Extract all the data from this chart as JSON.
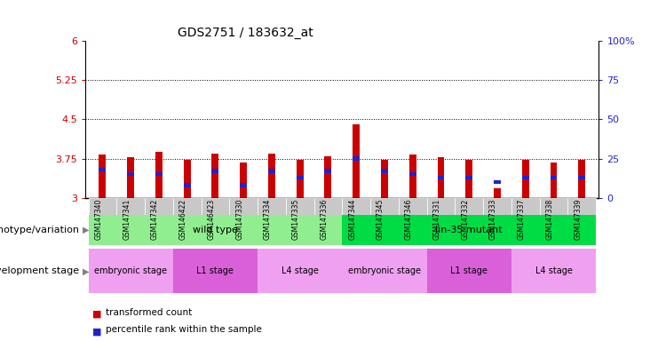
{
  "title": "GDS2751 / 183632_at",
  "samples": [
    "GSM147340",
    "GSM147341",
    "GSM147342",
    "GSM146422",
    "GSM146423",
    "GSM147330",
    "GSM147334",
    "GSM147335",
    "GSM147336",
    "GSM147344",
    "GSM147345",
    "GSM147346",
    "GSM147331",
    "GSM147332",
    "GSM147333",
    "GSM147337",
    "GSM147338",
    "GSM147339"
  ],
  "red_values": [
    3.82,
    3.78,
    3.88,
    3.72,
    3.85,
    3.68,
    3.85,
    3.72,
    3.8,
    4.4,
    3.73,
    3.83,
    3.78,
    3.72,
    3.18,
    3.73,
    3.68,
    3.73
  ],
  "blue_values": [
    18,
    15,
    15,
    8,
    17,
    8,
    17,
    13,
    17,
    25,
    17,
    15,
    13,
    13,
    10,
    13,
    13,
    13
  ],
  "ymin": 3.0,
  "ymax": 6.0,
  "yticks": [
    3.0,
    3.75,
    4.5,
    5.25,
    6.0
  ],
  "ytick_labels": [
    "3",
    "3.75",
    "4.5",
    "5.25",
    "6"
  ],
  "right_yticks": [
    0,
    25,
    50,
    75,
    100
  ],
  "right_ytick_labels": [
    "0",
    "25",
    "50",
    "75",
    "100%"
  ],
  "hlines": [
    3.75,
    4.5,
    5.25
  ],
  "genotype_groups": [
    {
      "label": "wild type",
      "start": 0,
      "end": 9,
      "color": "#90EE90"
    },
    {
      "label": "lin-35 mutant",
      "start": 9,
      "end": 18,
      "color": "#00DD44"
    }
  ],
  "stage_color_map": [
    "#F0A0F0",
    "#DA60DA",
    "#F0A0F0",
    "#F0A0F0",
    "#DA60DA",
    "#F0A0F0"
  ],
  "stage_groups": [
    {
      "label": "embryonic stage",
      "start": 0,
      "end": 3
    },
    {
      "label": "L1 stage",
      "start": 3,
      "end": 6
    },
    {
      "label": "L4 stage",
      "start": 6,
      "end": 9
    },
    {
      "label": "embryonic stage",
      "start": 9,
      "end": 12
    },
    {
      "label": "L1 stage",
      "start": 12,
      "end": 15
    },
    {
      "label": "L4 stage",
      "start": 15,
      "end": 18
    }
  ],
  "bar_width": 0.25,
  "red_color": "#CC0000",
  "blue_color": "#2222CC",
  "bar_bg": "#C8C8C8",
  "tick_label_color_left": "#CC0000",
  "tick_label_color_right": "#2222CC",
  "genotype_label": "genotype/variation",
  "stage_label": "development stage",
  "legend_items": [
    {
      "label": "transformed count",
      "color": "#CC0000"
    },
    {
      "label": "percentile rank within the sample",
      "color": "#2222CC"
    }
  ]
}
